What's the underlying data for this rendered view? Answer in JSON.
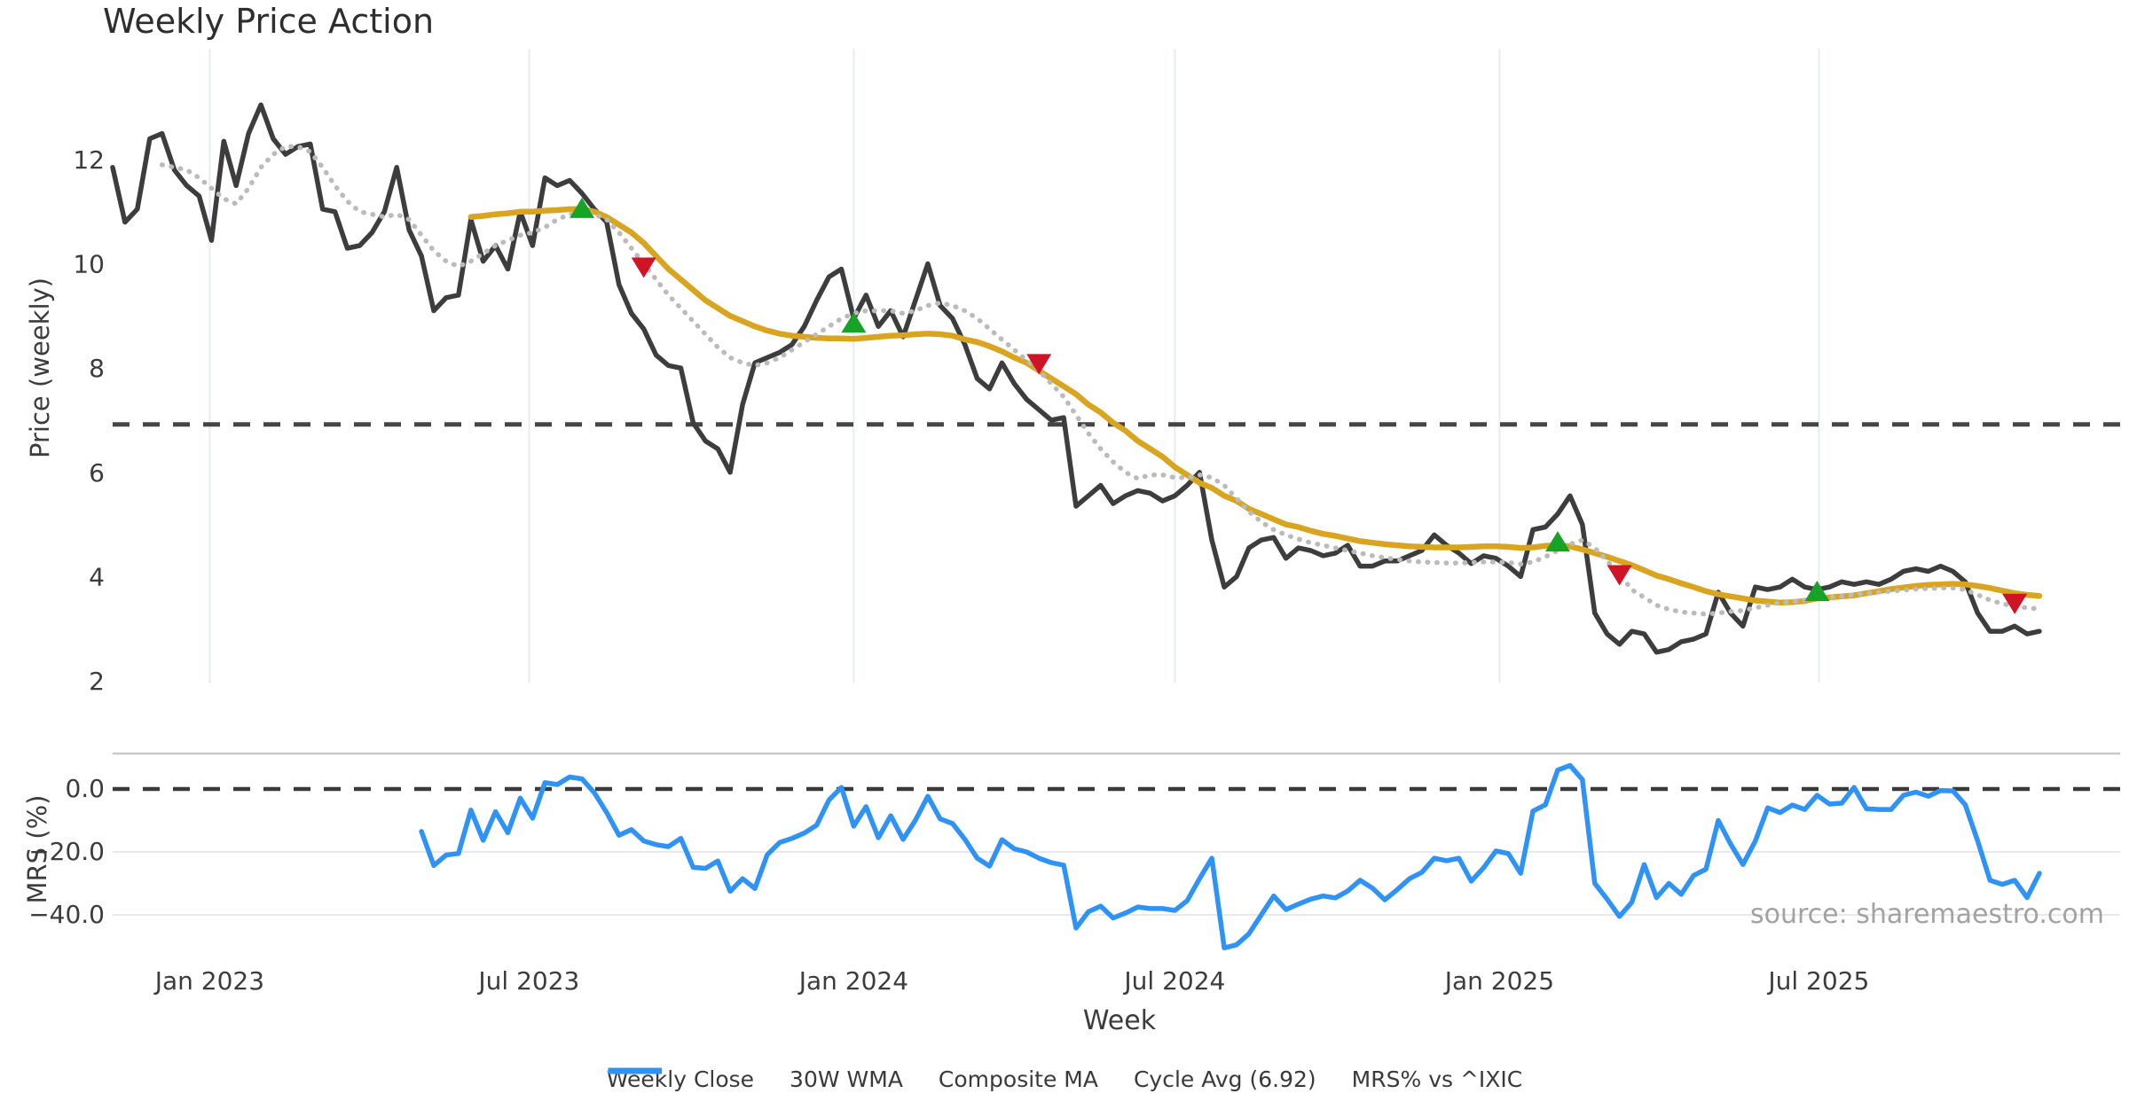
{
  "title": "Weekly Price Action",
  "watermark": "source: sharemaestro.com",
  "colors": {
    "close": "#3d3d3d",
    "wma": "#d9a521",
    "composite": "#bbbbbb",
    "cycle": "#454545",
    "mrs": "#2e93f5",
    "buy": "#17a327",
    "sell": "#ce1426",
    "grid_vertical": "#e9edf5",
    "grid_horizontal": "#e8e8ee",
    "panel_separator": "#c9c9c9",
    "tick_text": "#3c3c3c",
    "watermark_text": "#a2a2a2"
  },
  "axes": {
    "price_label": "Price (weekly)",
    "price_ticks": [
      12,
      10,
      8,
      6,
      4,
      2
    ],
    "mrs_label": "MRS (%)",
    "mrs_ticks": [
      "0.0",
      "−20.0",
      "−40.0"
    ],
    "mrs_tick_values": [
      0,
      -20,
      -40
    ],
    "week_label": "Week",
    "x_ticks": [
      {
        "date": "2023-01-01",
        "label": "Jan 2023"
      },
      {
        "date": "2023-07-01",
        "label": "Jul 2023"
      },
      {
        "date": "2024-01-01",
        "label": "Jan 2024"
      },
      {
        "date": "2024-07-01",
        "label": "Jul 2024"
      },
      {
        "date": "2025-01-01",
        "label": "Jan 2025"
      },
      {
        "date": "2025-07-01",
        "label": "Jul 2025"
      }
    ]
  },
  "legend": {
    "items": [
      {
        "label": "Weekly Close",
        "style": "solid",
        "color_key": "close"
      },
      {
        "label": "30W WMA",
        "style": "solid",
        "color_key": "wma"
      },
      {
        "label": "Composite MA",
        "style": "dotted",
        "color_key": "composite"
      },
      {
        "label": "Cycle Avg (6.92)",
        "style": "dashed",
        "color_key": "cycle"
      },
      {
        "label": "MRS% vs ^IXIC",
        "style": "solid",
        "color_key": "mrs"
      }
    ]
  },
  "chart_data": {
    "type": "line",
    "title": "Weekly Price Action",
    "xlabel": "Week",
    "x_start_date": "2022-11-07",
    "x_freq_days": 7,
    "n_weeks": 157,
    "panels": [
      {
        "name": "price",
        "ylabel": "Price (weekly)",
        "ylim": [
          1.85,
          14.1
        ],
        "yticks": [
          2,
          4,
          6,
          8,
          10,
          12
        ],
        "grid": "vertical-only"
      },
      {
        "name": "mrs",
        "ylabel": "MRS (%)",
        "ylim": [
          -51.5,
          11.5
        ],
        "yticks": [
          0,
          -20,
          -40
        ],
        "grid": "horizontal-only"
      }
    ],
    "cycle_avg": 6.92,
    "legend_position": "bottom-center",
    "series": [
      {
        "name": "Weekly Close",
        "panel": "price",
        "style": "solid",
        "color_key": "close",
        "values": [
          11.85,
          10.8,
          11.05,
          12.4,
          12.5,
          11.8,
          11.5,
          11.3,
          10.45,
          12.35,
          11.5,
          12.5,
          13.05,
          12.4,
          12.1,
          12.25,
          12.3,
          11.05,
          11.0,
          10.3,
          10.35,
          10.6,
          11.0,
          11.85,
          10.65,
          10.15,
          9.1,
          9.35,
          9.4,
          10.85,
          10.05,
          10.35,
          9.9,
          11.0,
          10.35,
          11.65,
          11.5,
          11.6,
          11.35,
          11.05,
          10.8,
          9.6,
          9.05,
          8.75,
          8.25,
          8.05,
          8.0,
          6.95,
          6.6,
          6.45,
          6.0,
          7.3,
          8.1,
          8.2,
          8.3,
          8.45,
          8.8,
          9.3,
          9.75,
          9.9,
          8.95,
          9.4,
          8.8,
          9.1,
          8.6,
          9.3,
          10.0,
          9.2,
          8.95,
          8.45,
          7.8,
          7.6,
          8.1,
          7.7,
          7.4,
          7.2,
          7.0,
          7.05,
          5.35,
          5.55,
          5.75,
          5.4,
          5.55,
          5.65,
          5.6,
          5.45,
          5.55,
          5.75,
          6.0,
          4.7,
          3.8,
          4.0,
          4.55,
          4.7,
          4.75,
          4.35,
          4.55,
          4.5,
          4.4,
          4.45,
          4.6,
          4.2,
          4.2,
          4.3,
          4.3,
          4.4,
          4.5,
          4.8,
          4.6,
          4.45,
          4.25,
          4.4,
          4.35,
          4.2,
          4.0,
          4.9,
          4.95,
          5.2,
          5.55,
          5.0,
          3.3,
          2.9,
          2.7,
          2.95,
          2.9,
          2.55,
          2.6,
          2.75,
          2.8,
          2.9,
          3.7,
          3.3,
          3.05,
          3.8,
          3.75,
          3.8,
          3.95,
          3.8,
          3.75,
          3.8,
          3.9,
          3.85,
          3.9,
          3.85,
          3.95,
          4.1,
          4.15,
          4.1,
          4.2,
          4.1,
          3.9,
          3.3,
          2.95,
          2.95,
          3.05,
          2.9,
          2.95
        ]
      },
      {
        "name": "30W WMA",
        "panel": "price",
        "style": "solid",
        "color_key": "wma",
        "values": [
          null,
          null,
          null,
          null,
          null,
          null,
          null,
          null,
          null,
          null,
          null,
          null,
          null,
          null,
          null,
          null,
          null,
          null,
          null,
          null,
          null,
          null,
          null,
          null,
          null,
          null,
          null,
          null,
          null,
          10.9,
          10.92,
          10.95,
          10.97,
          11.0,
          11.0,
          11.02,
          11.03,
          11.05,
          11.05,
          11.0,
          10.9,
          10.75,
          10.6,
          10.4,
          10.15,
          9.9,
          9.7,
          9.5,
          9.3,
          9.15,
          9.0,
          8.9,
          8.8,
          8.72,
          8.66,
          8.62,
          8.6,
          8.58,
          8.57,
          8.57,
          8.56,
          8.58,
          8.6,
          8.62,
          8.63,
          8.65,
          8.66,
          8.65,
          8.62,
          8.55,
          8.5,
          8.42,
          8.32,
          8.2,
          8.1,
          7.95,
          7.8,
          7.65,
          7.5,
          7.3,
          7.15,
          6.95,
          6.8,
          6.6,
          6.45,
          6.3,
          6.1,
          5.95,
          5.8,
          5.7,
          5.55,
          5.45,
          5.3,
          5.2,
          5.1,
          5.0,
          4.95,
          4.88,
          4.82,
          4.78,
          4.73,
          4.68,
          4.65,
          4.62,
          4.6,
          4.58,
          4.57,
          4.56,
          4.56,
          4.56,
          4.57,
          4.58,
          4.58,
          4.57,
          4.55,
          4.56,
          4.59,
          4.6,
          4.58,
          4.52,
          4.45,
          4.38,
          4.3,
          4.22,
          4.12,
          4.02,
          3.95,
          3.87,
          3.8,
          3.72,
          3.66,
          3.62,
          3.58,
          3.54,
          3.52,
          3.5,
          3.51,
          3.53,
          3.58,
          3.6,
          3.62,
          3.64,
          3.68,
          3.72,
          3.76,
          3.79,
          3.82,
          3.84,
          3.85,
          3.86,
          3.85,
          3.82,
          3.78,
          3.73,
          3.68,
          3.65,
          3.63
        ]
      },
      {
        "name": "Composite MA",
        "panel": "price",
        "style": "dotted",
        "color_key": "composite",
        "values": [
          null,
          null,
          null,
          null,
          11.9,
          11.85,
          11.8,
          11.65,
          11.45,
          11.25,
          11.15,
          11.45,
          11.85,
          12.1,
          12.25,
          12.25,
          12.15,
          11.85,
          11.5,
          11.2,
          11.0,
          10.95,
          10.9,
          10.95,
          10.85,
          10.55,
          10.25,
          10.05,
          9.95,
          10.05,
          10.2,
          10.35,
          10.45,
          10.55,
          10.6,
          10.7,
          10.85,
          10.95,
          11.0,
          10.95,
          10.85,
          10.6,
          10.3,
          10.0,
          9.7,
          9.4,
          9.15,
          8.9,
          8.65,
          8.4,
          8.2,
          8.1,
          8.05,
          8.1,
          8.2,
          8.35,
          8.5,
          8.65,
          8.8,
          8.95,
          9.05,
          9.1,
          9.1,
          9.1,
          9.05,
          9.1,
          9.2,
          9.25,
          9.2,
          9.1,
          8.95,
          8.75,
          8.55,
          8.35,
          8.15,
          7.95,
          7.7,
          7.45,
          7.1,
          6.75,
          6.45,
          6.2,
          6.0,
          5.88,
          5.95,
          5.95,
          5.9,
          5.9,
          5.95,
          5.9,
          5.75,
          5.5,
          5.25,
          5.05,
          4.9,
          4.8,
          4.72,
          4.65,
          4.6,
          4.55,
          4.5,
          4.45,
          4.4,
          4.36,
          4.33,
          4.3,
          4.28,
          4.27,
          4.26,
          4.26,
          4.27,
          4.28,
          4.28,
          4.27,
          4.24,
          4.28,
          4.38,
          4.5,
          4.62,
          4.7,
          4.55,
          4.3,
          4.05,
          3.75,
          3.6,
          3.45,
          3.37,
          3.32,
          3.3,
          3.28,
          3.3,
          3.33,
          3.35,
          3.4,
          3.45,
          3.5,
          3.52,
          3.55,
          3.58,
          3.6,
          3.62,
          3.65,
          3.68,
          3.7,
          3.72,
          3.74,
          3.76,
          3.77,
          3.78,
          3.78,
          3.75,
          3.65,
          3.55,
          3.48,
          3.43,
          3.4,
          3.38
        ]
      },
      {
        "name": "MRS% vs ^IXIC",
        "panel": "mrs",
        "style": "solid",
        "color_key": "mrs",
        "values": [
          null,
          null,
          null,
          null,
          null,
          null,
          null,
          null,
          null,
          null,
          null,
          null,
          null,
          null,
          null,
          null,
          null,
          null,
          null,
          null,
          null,
          null,
          null,
          null,
          null,
          -13.5,
          -24.3,
          -21.0,
          -20.5,
          -6.7,
          -16.3,
          -7.2,
          -13.9,
          -2.9,
          -9.3,
          2.0,
          1.4,
          3.8,
          3.2,
          -1.2,
          -7.5,
          -14.7,
          -12.9,
          -16.5,
          -17.7,
          -18.3,
          -15.7,
          -24.9,
          -25.2,
          -22.9,
          -32.5,
          -28.5,
          -31.6,
          -20.9,
          -17.0,
          -15.7,
          -14.0,
          -11.5,
          -3.5,
          0.5,
          -11.8,
          -5.6,
          -15.5,
          -8.5,
          -16.0,
          -9.9,
          -2.3,
          -9.5,
          -11.0,
          -16.0,
          -22.0,
          -24.5,
          -16.1,
          -19.0,
          -20.0,
          -22.0,
          -23.4,
          -24.2,
          -44.2,
          -39.0,
          -37.2,
          -41.0,
          -39.4,
          -37.5,
          -38.0,
          -38.0,
          -38.6,
          -35.5,
          -28.5,
          -22.0,
          -50.5,
          -49.5,
          -46.0,
          -40.0,
          -34.0,
          -38.3,
          -36.6,
          -35.0,
          -34.0,
          -34.6,
          -32.4,
          -29.0,
          -31.5,
          -35.2,
          -32.0,
          -28.5,
          -26.5,
          -22.0,
          -22.8,
          -22.0,
          -29.3,
          -25.0,
          -19.7,
          -20.5,
          -26.8,
          -7.0,
          -5.0,
          6.0,
          7.5,
          3.0,
          -30.0,
          -35.0,
          -40.5,
          -36.0,
          -24.0,
          -34.5,
          -30.0,
          -33.5,
          -27.5,
          -25.5,
          -10.0,
          -17.5,
          -24.0,
          -16.5,
          -6.0,
          -7.5,
          -5.1,
          -6.5,
          -2.0,
          -4.8,
          -4.5,
          0.5,
          -6.3,
          -6.5,
          -6.5,
          -2.0,
          -1.0,
          -2.3,
          -0.5,
          -0.6,
          -5.0,
          -16.5,
          -29.0,
          -30.3,
          -29.0,
          -34.5,
          -26.8
        ]
      }
    ],
    "signals": {
      "buy": [
        {
          "week": 38,
          "value": 11.05
        },
        {
          "week": 60,
          "value": 8.85
        },
        {
          "week": 117,
          "value": 4.65
        },
        {
          "week": 138,
          "value": 3.7
        }
      ],
      "sell": [
        {
          "week": 43,
          "value": 9.95
        },
        {
          "week": 75,
          "value": 8.1
        },
        {
          "week": 122,
          "value": 4.05
        },
        {
          "week": 154,
          "value": 3.5
        }
      ]
    }
  }
}
